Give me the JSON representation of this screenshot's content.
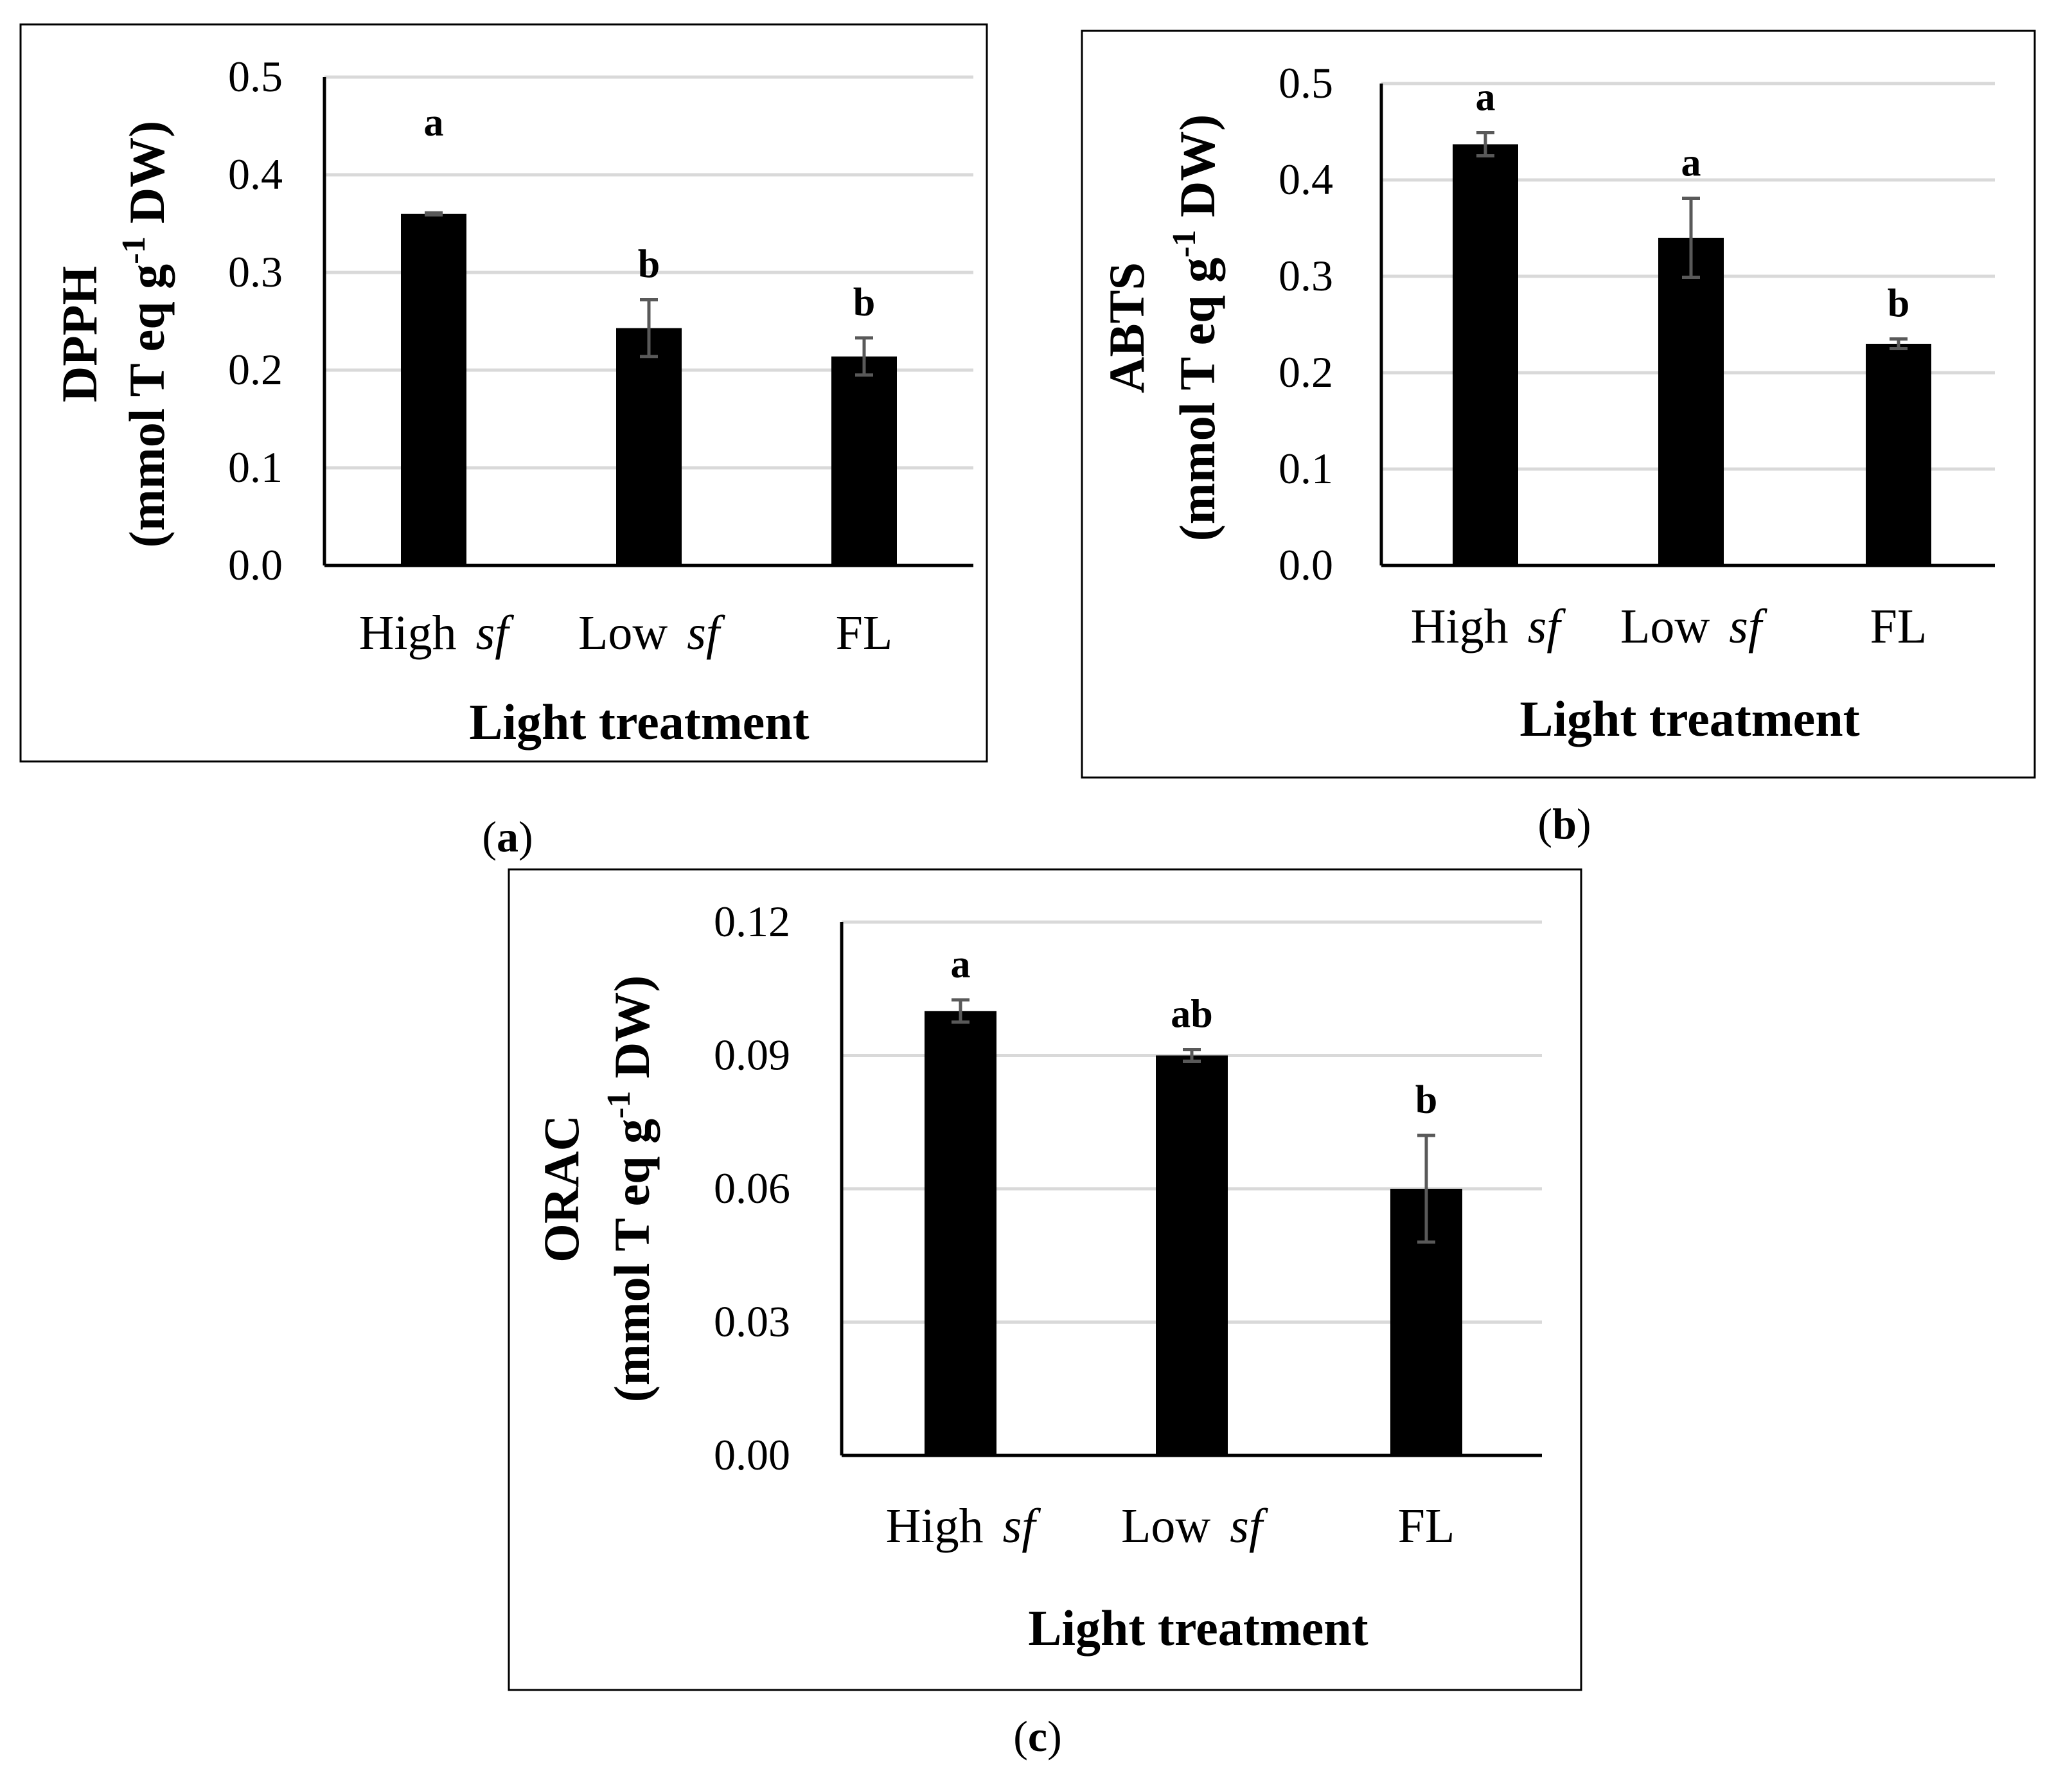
{
  "chart_data": [
    {
      "id": "a",
      "type": "bar",
      "panel_label": "a",
      "ylabel_line1": "DPPH",
      "ylabel_line2": "(mmol T eq g",
      "ylabel_sup": "-1",
      "ylabel_tail": " DW)",
      "xlabel": "Light treatment",
      "categories": [
        {
          "main": "High",
          "italic": "sf"
        },
        {
          "main": "Low",
          "italic": "sf"
        },
        {
          "main": "FL",
          "italic": ""
        }
      ],
      "values": [
        0.36,
        0.243,
        0.214
      ],
      "errors": [
        0.001,
        0.029,
        0.019
      ],
      "significance": [
        "a",
        "b",
        "b"
      ],
      "ylim": [
        0,
        0.5
      ],
      "yticks": [
        0.0,
        0.1,
        0.2,
        0.3,
        0.4,
        0.5
      ],
      "ytick_labels": [
        "0.0",
        "0.1",
        "0.2",
        "0.3",
        "0.4",
        "0.5"
      ],
      "grid": true
    },
    {
      "id": "b",
      "type": "bar",
      "panel_label": "b",
      "ylabel_line1": "ABTS",
      "ylabel_line2": "(mmol T eq g",
      "ylabel_sup": "-1",
      "ylabel_tail": " DW)",
      "xlabel": "Light treatment",
      "categories": [
        {
          "main": "High",
          "italic": "sf"
        },
        {
          "main": "Low",
          "italic": "sf"
        },
        {
          "main": "FL",
          "italic": ""
        }
      ],
      "values": [
        0.437,
        0.34,
        0.23
      ],
      "errors": [
        0.012,
        0.041,
        0.005
      ],
      "significance": [
        "a",
        "a",
        "b"
      ],
      "ylim": [
        0,
        0.5
      ],
      "yticks": [
        0.0,
        0.1,
        0.2,
        0.3,
        0.4,
        0.5
      ],
      "ytick_labels": [
        "0.0",
        "0.1",
        "0.2",
        "0.3",
        "0.4",
        "0.5"
      ],
      "grid": true
    },
    {
      "id": "c",
      "type": "bar",
      "panel_label": "c",
      "ylabel_line1": "ORAC",
      "ylabel_line2": "(mmol T eq g",
      "ylabel_sup": "-1",
      "ylabel_tail": " DW)",
      "xlabel": "Light treatment",
      "categories": [
        {
          "main": "High",
          "italic": "sf"
        },
        {
          "main": "Low",
          "italic": "sf"
        },
        {
          "main": "FL",
          "italic": ""
        }
      ],
      "values": [
        0.1,
        0.09,
        0.06
      ],
      "errors": [
        0.0025,
        0.0013,
        0.012
      ],
      "significance": [
        "a",
        "ab",
        "b"
      ],
      "ylim": [
        0,
        0.12
      ],
      "yticks": [
        0.0,
        0.03,
        0.06,
        0.09,
        0.12
      ],
      "ytick_labels": [
        "0.00",
        "0.03",
        "0.06",
        "0.09",
        "0.12"
      ],
      "grid": true
    }
  ]
}
